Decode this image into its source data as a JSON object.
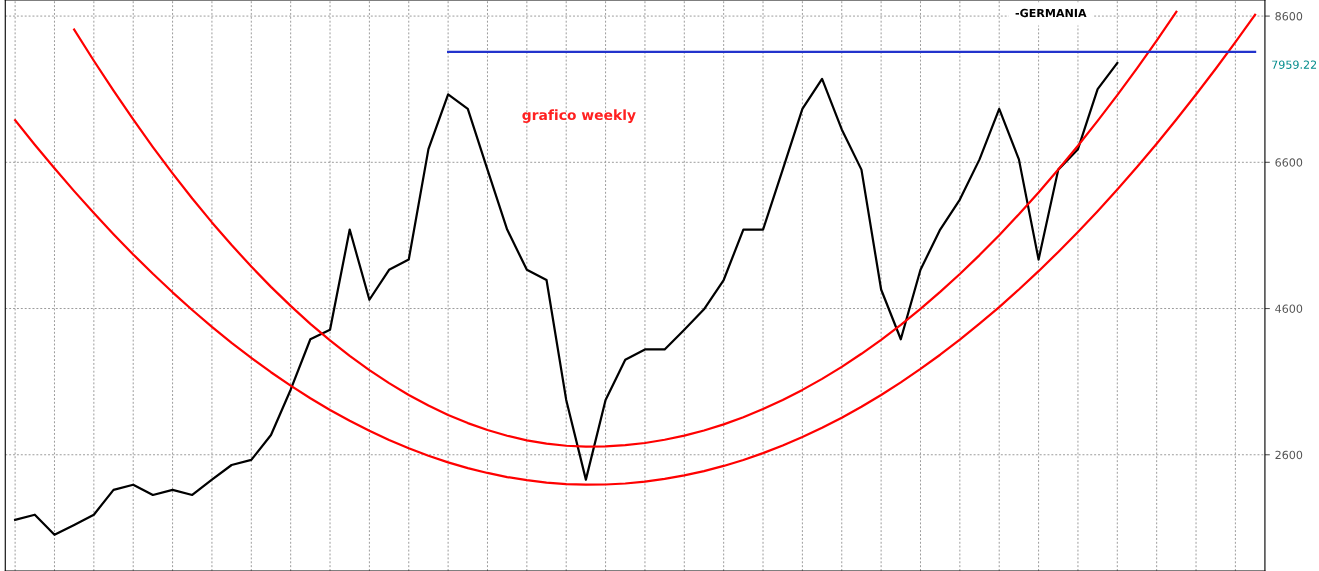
{
  "chart_data": {
    "type": "line",
    "title": "-GERMANIA",
    "categories": [
      null,
      null,
      null,
      null,
      null,
      null,
      null,
      null,
      null,
      null,
      null,
      null,
      null,
      null,
      null,
      null,
      null,
      null,
      null,
      null,
      null,
      null,
      null,
      null,
      null,
      null,
      null,
      null,
      null,
      null,
      null,
      null,
      null,
      null,
      null,
      null,
      null,
      null,
      null,
      null,
      null,
      null,
      null,
      null,
      null,
      null,
      null,
      null,
      null,
      null,
      null,
      null,
      null,
      null,
      null,
      null,
      null,
      null,
      null,
      null,
      null,
      null,
      null,
      null
    ],
    "series": [
      {
        "color": "#000000",
        "values": [
          1710,
          1780,
          1505,
          1640,
          1780,
          2120,
          2190,
          2050,
          2120,
          2050,
          2260,
          2460,
          2530,
          2870,
          3490,
          4180,
          4310,
          5680,
          4720,
          5130,
          5270,
          6780,
          7530,
          7330,
          6500,
          5680,
          5130,
          4990,
          3350,
          2260,
          3350,
          3900,
          4040,
          4040,
          4310,
          4590,
          4990,
          5680,
          5680,
          6500,
          7330,
          7740,
          7050,
          6500,
          4860,
          4180,
          5130,
          5680,
          6090,
          6640,
          7330,
          6640,
          5270,
          6500,
          6780,
          7600,
          7959.22,
          null,
          null,
          null,
          null,
          null,
          null,
          null
        ]
      },
      {
        "color": "#ff0000",
        "values": [
          null,
          null,
          null,
          8415,
          7989,
          7579,
          7186,
          6809,
          6449,
          6105,
          5778,
          5468,
          5174,
          4896,
          4636,
          4391,
          4164,
          3953,
          3758,
          3580,
          3418,
          3274,
          3145,
          3033,
          2938,
          2860,
          2797,
          2752,
          2723,
          2711,
          2714,
          2731,
          2761,
          2805,
          2862,
          2932,
          3016,
          3114,
          3225,
          3349,
          3487,
          3638,
          3802,
          3981,
          4172,
          4377,
          4595,
          4827,
          5073,
          5331,
          5603,
          5889,
          6188,
          6501,
          6826,
          7166,
          7519,
          7885,
          8265,
          8658,
          null,
          null,
          null,
          null
        ]
      },
      {
        "color": "#ff0000",
        "values": [
          7176,
          6841,
          6518,
          6206,
          5906,
          5617,
          5340,
          5075,
          4822,
          4580,
          4350,
          4131,
          3924,
          3729,
          3545,
          3373,
          3213,
          3065,
          2928,
          2802,
          2689,
          2587,
          2496,
          2418,
          2351,
          2295,
          2252,
          2220,
          2199,
          2190,
          2193,
          2207,
          2233,
          2269,
          2317,
          2377,
          2447,
          2529,
          2622,
          2727,
          2842,
          2969,
          3107,
          3257,
          3418,
          3590,
          3774,
          3968,
          4174,
          4392,
          4620,
          4860,
          5111,
          5374,
          5647,
          5932,
          6229,
          6536,
          6855,
          7185,
          7527,
          7880,
          8244,
          8619
        ]
      },
      {
        "color": "#2233cc",
        "values": [
          null,
          null,
          null,
          null,
          null,
          null,
          null,
          null,
          null,
          null,
          null,
          null,
          null,
          null,
          null,
          null,
          null,
          null,
          null,
          null,
          null,
          null,
          8110,
          8110,
          8110,
          8110,
          8110,
          8110,
          8110,
          8110,
          8110,
          8110,
          8110,
          8110,
          8110,
          8110,
          8110,
          8110,
          8110,
          8110,
          8110,
          8110,
          8110,
          8110,
          8110,
          8110,
          8110,
          8110,
          8110,
          8110,
          8110,
          8110,
          8110,
          8110,
          8110,
          8110,
          8110,
          8110,
          8110,
          8110,
          8110,
          8110,
          8110,
          8110
        ]
      }
    ],
    "ylim": [
      1010,
      8820
    ],
    "yticks": [
      2600,
      4600,
      6600,
      8600
    ],
    "tick_labels": "y",
    "grid": true,
    "line_style": "solid",
    "annotations": [
      "grafico weekly",
      "7959.22"
    ]
  }
}
